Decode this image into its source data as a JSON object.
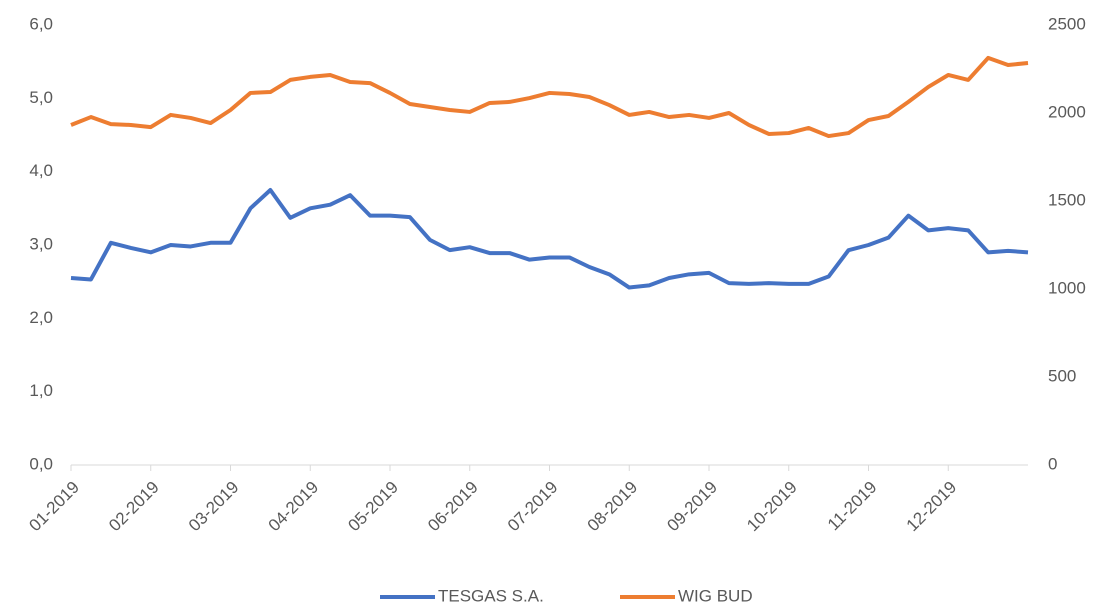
{
  "chart_data": {
    "type": "line",
    "x": [
      0,
      0.25,
      0.5,
      0.75,
      1,
      1.25,
      1.5,
      1.75,
      2,
      2.25,
      2.5,
      2.75,
      3,
      3.25,
      3.5,
      3.75,
      4,
      4.25,
      4.5,
      4.75,
      5,
      5.25,
      5.5,
      5.75,
      6,
      6.25,
      6.5,
      6.75,
      7,
      7.25,
      7.5,
      7.75,
      8,
      8.25,
      8.5,
      8.75,
      9,
      9.25,
      9.5,
      9.75,
      10,
      10.25,
      10.5,
      10.75,
      11,
      11.25,
      11.5,
      11.75,
      12
    ],
    "series": [
      {
        "name": "TESGAS S.A.",
        "color": "#4472c4",
        "axis": "y",
        "values": [
          2.55,
          2.53,
          3.03,
          2.96,
          2.9,
          3.0,
          2.98,
          3.03,
          3.03,
          3.5,
          3.75,
          3.37,
          3.5,
          3.55,
          3.68,
          3.4,
          3.4,
          3.38,
          3.07,
          2.93,
          2.97,
          2.89,
          2.89,
          2.8,
          2.83,
          2.83,
          2.7,
          2.6,
          2.42,
          2.45,
          2.55,
          2.6,
          2.62,
          2.48,
          2.47,
          2.48,
          2.47,
          2.47,
          2.57,
          2.93,
          3.0,
          3.1,
          3.4,
          3.2,
          3.23,
          3.2,
          2.9,
          2.92,
          2.9
        ]
      },
      {
        "name": "WIG BUD",
        "color": "#ed7d31",
        "axis": "y2",
        "values": [
          1932,
          1977,
          1937,
          1932,
          1920,
          1989,
          1972,
          1943,
          2017,
          2114,
          2119,
          2188,
          2205,
          2216,
          2176,
          2170,
          2114,
          2051,
          2034,
          2017,
          2006,
          2057,
          2063,
          2085,
          2114,
          2108,
          2091,
          2045,
          1989,
          2006,
          1977,
          1989,
          1972,
          2000,
          1932,
          1881,
          1886,
          1915,
          1869,
          1886,
          1960,
          1983,
          2063,
          2148,
          2216,
          2188,
          2313,
          2273,
          2284
        ]
      }
    ],
    "xlim": [
      0,
      12
    ],
    "xticks": [
      {
        "value": 0,
        "label": "01-2019"
      },
      {
        "value": 1,
        "label": "02-2019"
      },
      {
        "value": 2,
        "label": "03-2019"
      },
      {
        "value": 3,
        "label": "04-2019"
      },
      {
        "value": 4,
        "label": "05-2019"
      },
      {
        "value": 5,
        "label": "06-2019"
      },
      {
        "value": 6,
        "label": "07-2019"
      },
      {
        "value": 7,
        "label": "08-2019"
      },
      {
        "value": 8,
        "label": "09-2019"
      },
      {
        "value": 9,
        "label": "10-2019"
      },
      {
        "value": 10,
        "label": "11-2019"
      },
      {
        "value": 11,
        "label": "12-2019"
      }
    ],
    "ylim": [
      0,
      6
    ],
    "yticks": [
      {
        "value": 0,
        "label": "0,0"
      },
      {
        "value": 1,
        "label": "1,0"
      },
      {
        "value": 2,
        "label": "2,0"
      },
      {
        "value": 3,
        "label": "3,0"
      },
      {
        "value": 4,
        "label": "4,0"
      },
      {
        "value": 5,
        "label": "5,0"
      },
      {
        "value": 6,
        "label": "6,0"
      }
    ],
    "y2lim": [
      0,
      2500
    ],
    "y2ticks": [
      0,
      500,
      1000,
      1500,
      2000,
      2500
    ],
    "legend": "bottom"
  }
}
